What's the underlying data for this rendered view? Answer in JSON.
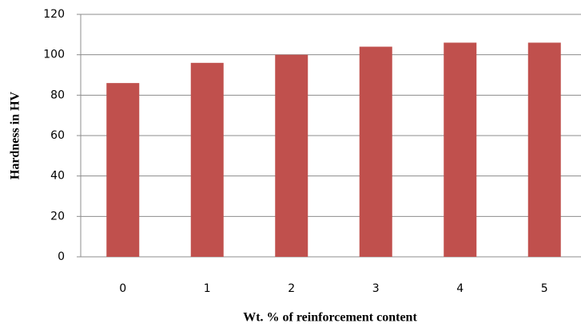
{
  "chart_data": {
    "type": "bar",
    "x_label": "Wt. % of reinforcement content",
    "y_label": "Hardness in HV",
    "categories": [
      "0",
      "1",
      "2",
      "3",
      "4",
      "5"
    ],
    "values": [
      86,
      96,
      100,
      104,
      106,
      106
    ],
    "color": "#c0504d",
    "ylim": [
      0,
      120
    ],
    "yticks": [
      0,
      20,
      40,
      60,
      80,
      100,
      120
    ],
    "grid": true
  }
}
